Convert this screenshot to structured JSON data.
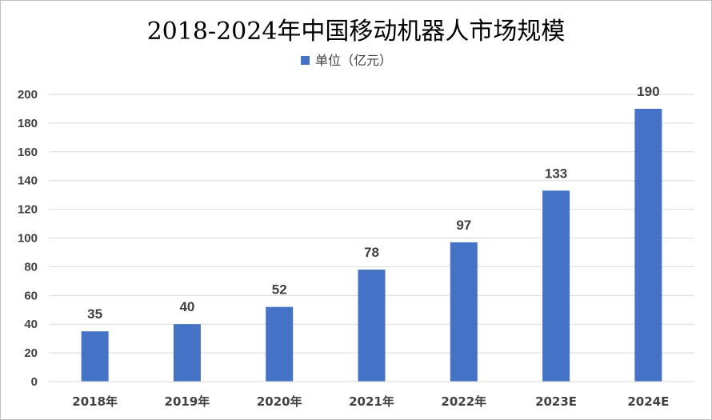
{
  "chart_data": {
    "type": "bar",
    "title": "2018-2024年中国移动机器人市场规模",
    "xlabel": "",
    "ylabel": "",
    "categories": [
      "2018年",
      "2019年",
      "2020年",
      "2021年",
      "2022年",
      "2023E",
      "2024E"
    ],
    "series": [
      {
        "name": "单位（亿元）",
        "values": [
          35,
          40,
          52,
          78,
          97,
          133,
          190
        ],
        "color": "#4472c4"
      }
    ],
    "ylim": [
      0,
      200
    ],
    "yticks": [
      0,
      20,
      40,
      60,
      80,
      100,
      120,
      140,
      160,
      180,
      200
    ],
    "grid": true,
    "legend": "top-center",
    "data_labels": true
  }
}
